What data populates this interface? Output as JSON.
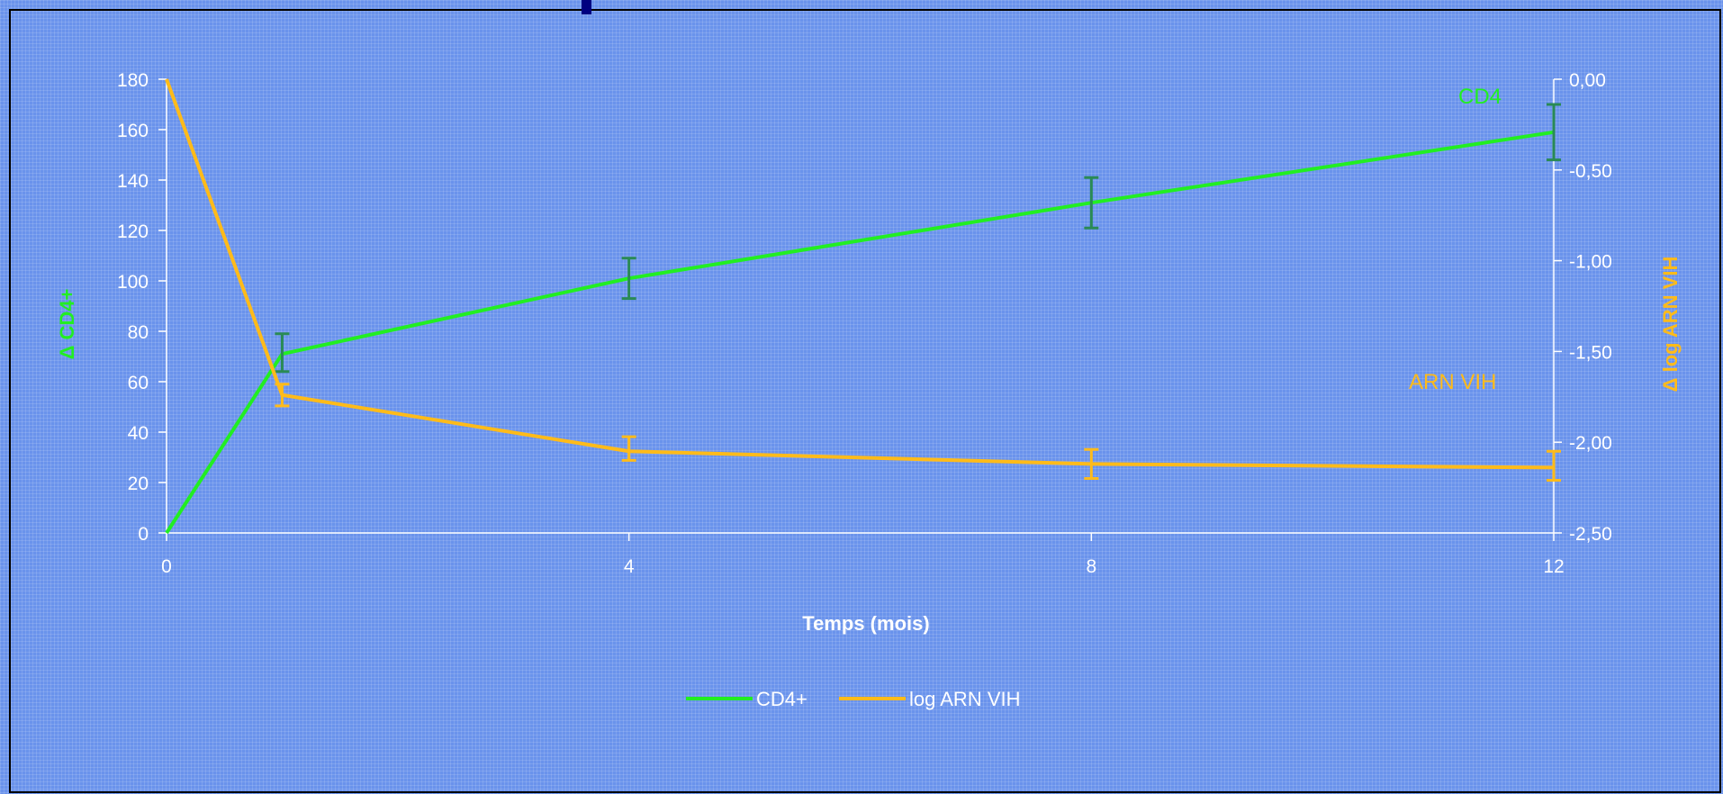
{
  "colors": {
    "background": "#6a93ec",
    "frame": "#000000",
    "axis": "#ffffff",
    "cd4_line": "#22ee22",
    "cd4_error": "#2a8a55",
    "arn_line": "#ffbb1a",
    "arn_error": "#ffbb1a",
    "marker": "#000080"
  },
  "chart_data": {
    "type": "line",
    "title": "",
    "xlabel": "Temps (mois)",
    "ylabel_left": "Δ CD4+",
    "ylabel_right": "Δ log ARN VIH",
    "x": [
      0,
      1,
      4,
      8,
      12
    ],
    "x_ticks": [
      0,
      4,
      8,
      12
    ],
    "x_tick_labels": [
      "0",
      "4",
      "8",
      "12"
    ],
    "xlim": [
      0,
      12
    ],
    "ylim_left": [
      0,
      180
    ],
    "y_ticks_left": [
      0,
      20,
      40,
      60,
      80,
      100,
      120,
      140,
      160,
      180
    ],
    "y_tick_labels_left": [
      "0",
      "20",
      "40",
      "60",
      "80",
      "100",
      "120",
      "140",
      "160",
      "180"
    ],
    "ylim_right": [
      -2.5,
      0
    ],
    "y_ticks_right": [
      0,
      -0.5,
      -1.0,
      -1.5,
      -2.0,
      -2.5
    ],
    "y_tick_labels_right": [
      "0,00",
      "-0,50",
      "-1,00",
      "-1,50",
      "-2,00",
      "-2,50"
    ],
    "grid": false,
    "legend_position": "bottom",
    "series": [
      {
        "name": "CD4+",
        "axis": "left",
        "color": "#22ee22",
        "error_color": "#2a8a55",
        "values": [
          0,
          71,
          101,
          131,
          159
        ],
        "error_low": [
          null,
          64,
          93,
          121,
          148
        ],
        "error_high": [
          null,
          79,
          109,
          141,
          170
        ]
      },
      {
        "name": "log ARN VIH",
        "axis": "right",
        "color": "#ffbb1a",
        "error_color": "#ffbb1a",
        "values": [
          0,
          -1.74,
          -2.05,
          -2.12,
          -2.14
        ],
        "error_low": [
          null,
          -1.8,
          -2.1,
          -2.2,
          -2.21
        ],
        "error_high": [
          null,
          -1.68,
          -1.97,
          -2.04,
          -2.05
        ]
      }
    ],
    "annotations": [
      {
        "text": "CD4",
        "series": "CD4+"
      },
      {
        "text": "ARN VIH",
        "series": "log ARN VIH"
      }
    ]
  }
}
